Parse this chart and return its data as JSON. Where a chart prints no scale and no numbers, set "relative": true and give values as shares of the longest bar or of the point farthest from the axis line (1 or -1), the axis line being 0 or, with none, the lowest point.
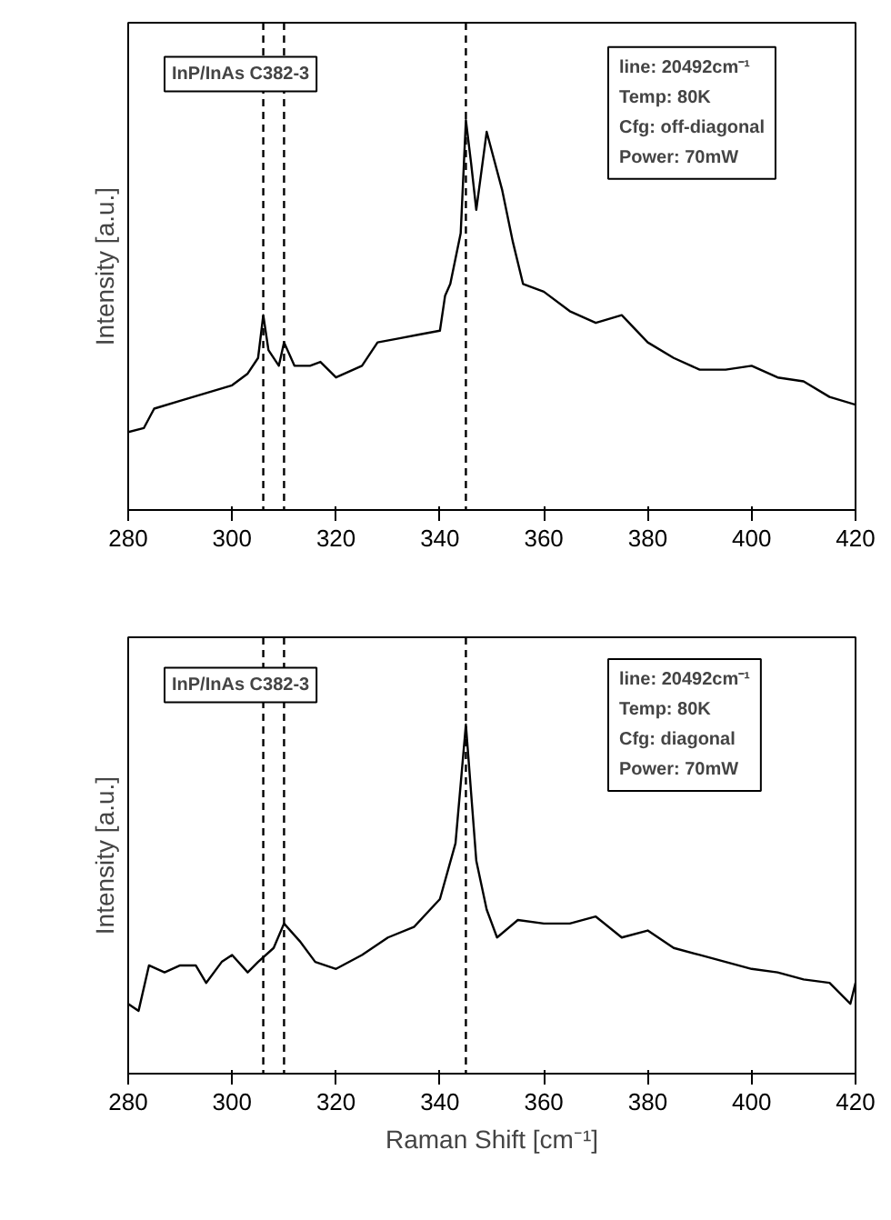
{
  "chart_data": [
    {
      "type": "line",
      "ylabel": "Intensity [a.u.]",
      "relative": true,
      "xlim": [
        280,
        420
      ],
      "xticks": [
        280,
        300,
        320,
        340,
        360,
        380,
        400,
        420
      ],
      "grid": false,
      "marker": "none",
      "line_style": "solid",
      "annotations": [
        "InP/InAs C382-3",
        "line: 20492cm⁻¹",
        "Temp: 80K",
        "Cfg: off-diagonal",
        "Power: 70mW"
      ],
      "ref_lines": [
        {
          "axis": "x",
          "value": 306,
          "label": null,
          "color": "#000000",
          "line_style": "dashed"
        },
        {
          "axis": "x",
          "value": 310,
          "label": null,
          "color": "#000000",
          "line_style": "dashed"
        },
        {
          "axis": "x",
          "value": 345,
          "label": null,
          "color": "#000000",
          "line_style": "dashed"
        }
      ],
      "series": [
        {
          "color": "#000000",
          "x": [
            280,
            283,
            285,
            290,
            295,
            300,
            303,
            305,
            306,
            307,
            309,
            310,
            312,
            315,
            317,
            320,
            325,
            328,
            332,
            336,
            340,
            341,
            342,
            344,
            345,
            346,
            347,
            349,
            352,
            354,
            356,
            360,
            365,
            370,
            375,
            380,
            385,
            390,
            395,
            400,
            405,
            410,
            415,
            420
          ],
          "values": [
            0.2,
            0.21,
            0.26,
            0.28,
            0.3,
            0.32,
            0.35,
            0.39,
            0.5,
            0.41,
            0.37,
            0.43,
            0.37,
            0.37,
            0.38,
            0.34,
            0.37,
            0.43,
            0.44,
            0.45,
            0.46,
            0.55,
            0.58,
            0.71,
            1.0,
            0.89,
            0.77,
            0.97,
            0.82,
            0.69,
            0.58,
            0.56,
            0.51,
            0.48,
            0.5,
            0.43,
            0.39,
            0.36,
            0.36,
            0.37,
            0.34,
            0.33,
            0.29,
            0.27
          ]
        }
      ]
    },
    {
      "type": "line",
      "xlabel": "Raman Shift [cm⁻¹]",
      "ylabel": "Intensity [a.u.]",
      "relative": true,
      "xlim": [
        280,
        420
      ],
      "xticks": [
        280,
        300,
        320,
        340,
        360,
        380,
        400,
        420
      ],
      "grid": false,
      "marker": "none",
      "line_style": "solid",
      "annotations": [
        "InP/InAs C382-3",
        "line: 20492cm⁻¹",
        "Temp: 80K",
        "Cfg: diagonal",
        "Power: 70mW"
      ],
      "ref_lines": [
        {
          "axis": "x",
          "value": 306,
          "label": null,
          "color": "#000000",
          "line_style": "dashed"
        },
        {
          "axis": "x",
          "value": 310,
          "label": null,
          "color": "#000000",
          "line_style": "dashed"
        },
        {
          "axis": "x",
          "value": 345,
          "label": null,
          "color": "#000000",
          "line_style": "dashed"
        }
      ],
      "series": [
        {
          "color": "#000000",
          "x": [
            280,
            282,
            284,
            287,
            290,
            293,
            295,
            298,
            300,
            303,
            305,
            308,
            310,
            313,
            316,
            320,
            325,
            330,
            335,
            340,
            343,
            345,
            347,
            349,
            351,
            355,
            360,
            365,
            370,
            375,
            380,
            385,
            390,
            395,
            400,
            405,
            410,
            415,
            419,
            420
          ],
          "values": [
            0.2,
            0.18,
            0.31,
            0.29,
            0.31,
            0.31,
            0.26,
            0.32,
            0.34,
            0.29,
            0.32,
            0.36,
            0.43,
            0.38,
            0.32,
            0.3,
            0.34,
            0.39,
            0.42,
            0.5,
            0.66,
            1.0,
            0.61,
            0.47,
            0.39,
            0.44,
            0.43,
            0.43,
            0.45,
            0.39,
            0.41,
            0.36,
            0.34,
            0.32,
            0.3,
            0.29,
            0.27,
            0.26,
            0.2,
            0.26
          ]
        }
      ]
    }
  ]
}
